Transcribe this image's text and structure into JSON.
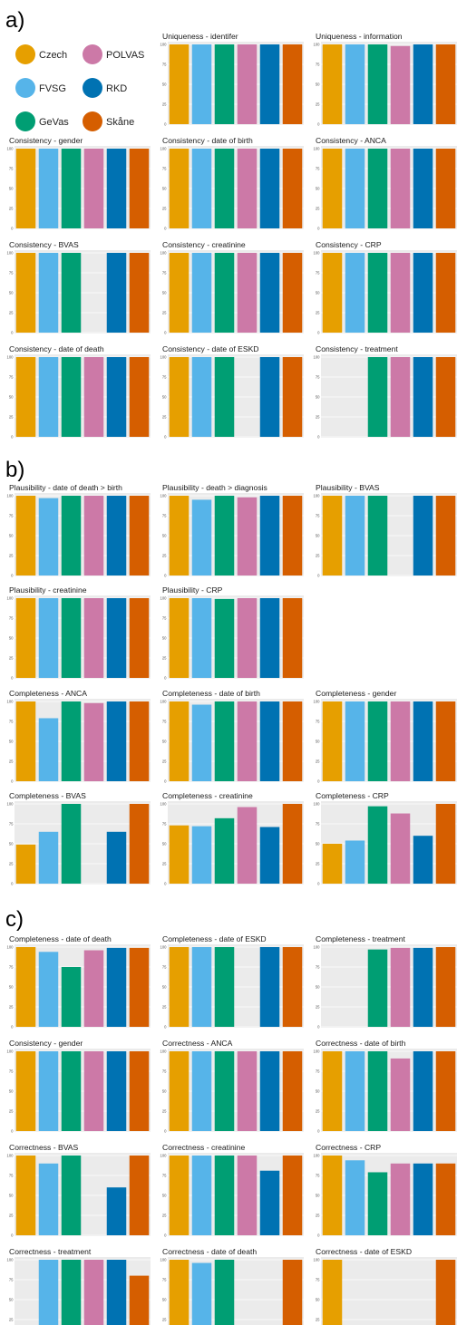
{
  "sections": [
    {
      "label": "a)"
    },
    {
      "label": "b)"
    },
    {
      "label": "c)"
    }
  ],
  "legend": [
    {
      "name": "Czech",
      "color": "#E69F00"
    },
    {
      "name": "POLVAS",
      "color": "#CC79A7"
    },
    {
      "name": "FVSG",
      "color": "#56B4E9"
    },
    {
      "name": "RKD",
      "color": "#0072B2"
    },
    {
      "name": "GeVas",
      "color": "#009E73"
    },
    {
      "name": "Skåne",
      "color": "#D55E00"
    }
  ],
  "chart_data": [
    {
      "type": "bar",
      "title": "Uniqueness - identifer",
      "categories": [
        "Czech",
        "FVSG",
        "GeVas",
        "POLVAS",
        "RKD",
        "Skåne"
      ],
      "values": [
        100,
        100,
        100,
        100,
        100,
        100
      ],
      "ylim": [
        0,
        100
      ],
      "yticks": [
        "100",
        "75",
        "50",
        "25",
        "0"
      ]
    },
    {
      "type": "bar",
      "title": "Uniqueness - information",
      "categories": [
        "Czech",
        "FVSG",
        "GeVas",
        "POLVAS",
        "RKD",
        "Skåne"
      ],
      "values": [
        100,
        100,
        100,
        98,
        100,
        100
      ],
      "ylim": [
        0,
        100
      ],
      "yticks": [
        "100",
        "75",
        "50",
        "25",
        "0"
      ]
    },
    {
      "type": "bar",
      "title": "Consistency - gender",
      "categories": [
        "Czech",
        "FVSG",
        "GeVas",
        "POLVAS",
        "RKD",
        "Skåne"
      ],
      "values": [
        100,
        100,
        100,
        100,
        100,
        100
      ],
      "ylim": [
        0,
        100
      ],
      "yticks": [
        "100",
        "75",
        "50",
        "25",
        "0"
      ]
    },
    {
      "type": "bar",
      "title": "Consistency - date of birth",
      "categories": [
        "Czech",
        "FVSG",
        "GeVas",
        "POLVAS",
        "RKD",
        "Skåne"
      ],
      "values": [
        100,
        100,
        100,
        100,
        100,
        100
      ],
      "ylim": [
        0,
        100
      ],
      "yticks": [
        "100",
        "75",
        "50",
        "25",
        "0"
      ]
    },
    {
      "type": "bar",
      "title": "Consistency - ANCA",
      "categories": [
        "Czech",
        "FVSG",
        "GeVas",
        "POLVAS",
        "RKD",
        "Skåne"
      ],
      "values": [
        100,
        100,
        100,
        100,
        100,
        100
      ],
      "ylim": [
        0,
        100
      ],
      "yticks": [
        "100",
        "75",
        "50",
        "25",
        "0"
      ]
    },
    {
      "type": "bar",
      "title": "Consistency - BVAS",
      "categories": [
        "Czech",
        "FVSG",
        "GeVas",
        "POLVAS",
        "RKD",
        "Skåne"
      ],
      "values": [
        100,
        100,
        100,
        null,
        100,
        100
      ],
      "ylim": [
        0,
        100
      ],
      "yticks": [
        "100",
        "75",
        "50",
        "25",
        "0"
      ]
    },
    {
      "type": "bar",
      "title": "Consistency - creatinine",
      "categories": [
        "Czech",
        "FVSG",
        "GeVas",
        "POLVAS",
        "RKD",
        "Skåne"
      ],
      "values": [
        100,
        100,
        100,
        100,
        100,
        100
      ],
      "ylim": [
        0,
        100
      ],
      "yticks": [
        "100",
        "75",
        "50",
        "25",
        "0"
      ]
    },
    {
      "type": "bar",
      "title": "Consistency - CRP",
      "categories": [
        "Czech",
        "FVSG",
        "GeVas",
        "POLVAS",
        "RKD",
        "Skåne"
      ],
      "values": [
        100,
        100,
        100,
        100,
        100,
        100
      ],
      "ylim": [
        0,
        100
      ],
      "yticks": [
        "100",
        "75",
        "50",
        "25",
        "0"
      ]
    },
    {
      "type": "bar",
      "title": "Consistency - date of death",
      "categories": [
        "Czech",
        "FVSG",
        "GeVas",
        "POLVAS",
        "RKD",
        "Skåne"
      ],
      "values": [
        100,
        100,
        100,
        100,
        100,
        100
      ],
      "ylim": [
        0,
        100
      ],
      "yticks": [
        "100",
        "75",
        "50",
        "25",
        "0"
      ]
    },
    {
      "type": "bar",
      "title": "Consistency - date of ESKD",
      "categories": [
        "Czech",
        "FVSG",
        "GeVas",
        "POLVAS",
        "RKD",
        "Skåne"
      ],
      "values": [
        100,
        100,
        100,
        null,
        100,
        100
      ],
      "ylim": [
        0,
        100
      ],
      "yticks": [
        "100",
        "75",
        "50",
        "25",
        "0"
      ]
    },
    {
      "type": "bar",
      "title": "Consistency - treatment",
      "categories": [
        "Czech",
        "FVSG",
        "GeVas",
        "POLVAS",
        "RKD",
        "Skåne"
      ],
      "values": [
        null,
        null,
        100,
        100,
        100,
        100
      ],
      "ylim": [
        0,
        100
      ],
      "yticks": [
        "100",
        "75",
        "50",
        "25",
        "0"
      ]
    },
    {
      "type": "bar",
      "title": "Plausibility - date of death > birth",
      "categories": [
        "Czech",
        "FVSG",
        "GeVas",
        "POLVAS",
        "RKD",
        "Skåne"
      ],
      "values": [
        100,
        97,
        100,
        100,
        100,
        100
      ],
      "ylim": [
        0,
        100
      ],
      "yticks": [
        "100",
        "75",
        "50",
        "25",
        "0"
      ]
    },
    {
      "type": "bar",
      "title": "Plausibility - death > diagnosis",
      "categories": [
        "Czech",
        "FVSG",
        "GeVas",
        "POLVAS",
        "RKD",
        "Skåne"
      ],
      "values": [
        100,
        95,
        100,
        98,
        100,
        100
      ],
      "ylim": [
        0,
        100
      ],
      "yticks": [
        "100",
        "75",
        "50",
        "25",
        "0"
      ]
    },
    {
      "type": "bar",
      "title": "Plausibility - BVAS",
      "categories": [
        "Czech",
        "FVSG",
        "GeVas",
        "POLVAS",
        "RKD",
        "Skåne"
      ],
      "values": [
        100,
        100,
        100,
        null,
        100,
        100
      ],
      "ylim": [
        0,
        100
      ],
      "yticks": [
        "100",
        "75",
        "50",
        "25",
        "0"
      ]
    },
    {
      "type": "bar",
      "title": "Plausibility - creatinine",
      "categories": [
        "Czech",
        "FVSG",
        "GeVas",
        "POLVAS",
        "RKD",
        "Skåne"
      ],
      "values": [
        100,
        100,
        100,
        100,
        100,
        100
      ],
      "ylim": [
        0,
        100
      ],
      "yticks": [
        "100",
        "75",
        "50",
        "25",
        "0"
      ]
    },
    {
      "type": "bar",
      "title": "Plausibility - CRP",
      "categories": [
        "Czech",
        "FVSG",
        "GeVas",
        "POLVAS",
        "RKD",
        "Skåne"
      ],
      "values": [
        100,
        100,
        99,
        100,
        100,
        100
      ],
      "ylim": [
        0,
        100
      ],
      "yticks": [
        "100",
        "75",
        "50",
        "25",
        "0"
      ]
    },
    {
      "type": "bar",
      "title": "Completeness - ANCA",
      "categories": [
        "Czech",
        "FVSG",
        "GeVas",
        "POLVAS",
        "RKD",
        "Skåne"
      ],
      "values": [
        100,
        79,
        100,
        98,
        100,
        100
      ],
      "ylim": [
        0,
        100
      ],
      "yticks": [
        "100",
        "75",
        "50",
        "25",
        "0"
      ]
    },
    {
      "type": "bar",
      "title": "Completeness - date of birth",
      "categories": [
        "Czech",
        "FVSG",
        "GeVas",
        "POLVAS",
        "RKD",
        "Skåne"
      ],
      "values": [
        100,
        96,
        100,
        100,
        100,
        100
      ],
      "ylim": [
        0,
        100
      ],
      "yticks": [
        "100",
        "75",
        "50",
        "25",
        "0"
      ]
    },
    {
      "type": "bar",
      "title": "Completeness - gender",
      "categories": [
        "Czech",
        "FVSG",
        "GeVas",
        "POLVAS",
        "RKD",
        "Skåne"
      ],
      "values": [
        100,
        100,
        100,
        100,
        100,
        100
      ],
      "ylim": [
        0,
        100
      ],
      "yticks": [
        "100",
        "75",
        "50",
        "25",
        "0"
      ]
    },
    {
      "type": "bar",
      "title": "Completeness - BVAS",
      "categories": [
        "Czech",
        "FVSG",
        "GeVas",
        "POLVAS",
        "RKD",
        "Skåne"
      ],
      "values": [
        49,
        65,
        100,
        null,
        65,
        100
      ],
      "ylim": [
        0,
        100
      ],
      "yticks": [
        "100",
        "75",
        "50",
        "25",
        "0"
      ]
    },
    {
      "type": "bar",
      "title": "Completeness - creatinine",
      "categories": [
        "Czech",
        "FVSG",
        "GeVas",
        "POLVAS",
        "RKD",
        "Skåne"
      ],
      "values": [
        73,
        72,
        82,
        96,
        71,
        100
      ],
      "ylim": [
        0,
        100
      ],
      "yticks": [
        "100",
        "75",
        "50",
        "25",
        "0"
      ]
    },
    {
      "type": "bar",
      "title": "Completeness - CRP",
      "categories": [
        "Czech",
        "FVSG",
        "GeVas",
        "POLVAS",
        "RKD",
        "Skåne"
      ],
      "values": [
        50,
        54,
        97,
        88,
        60,
        100
      ],
      "ylim": [
        0,
        100
      ],
      "yticks": [
        "100",
        "75",
        "50",
        "25",
        "0"
      ]
    },
    {
      "type": "bar",
      "title": "Completeness - date of death",
      "categories": [
        "Czech",
        "FVSG",
        "GeVas",
        "POLVAS",
        "RKD",
        "Skåne"
      ],
      "values": [
        100,
        94,
        75,
        96,
        99,
        99
      ],
      "ylim": [
        0,
        100
      ],
      "yticks": [
        "100",
        "75",
        "50",
        "25",
        "0"
      ]
    },
    {
      "type": "bar",
      "title": "Completeness - date of ESKD",
      "categories": [
        "Czech",
        "FVSG",
        "GeVas",
        "POLVAS",
        "RKD",
        "Skåne"
      ],
      "values": [
        100,
        100,
        100,
        null,
        100,
        100
      ],
      "ylim": [
        0,
        100
      ],
      "yticks": [
        "100",
        "75",
        "50",
        "25",
        "0"
      ]
    },
    {
      "type": "bar",
      "title": "Completeness - treatment",
      "categories": [
        "Czech",
        "FVSG",
        "GeVas",
        "POLVAS",
        "RKD",
        "Skåne"
      ],
      "values": [
        null,
        null,
        97,
        99,
        99,
        100
      ],
      "ylim": [
        0,
        100
      ],
      "yticks": [
        "100",
        "75",
        "50",
        "25",
        "0"
      ]
    },
    {
      "type": "bar",
      "title": "Consistency - gender",
      "categories": [
        "Czech",
        "FVSG",
        "GeVas",
        "POLVAS",
        "RKD",
        "Skåne"
      ],
      "values": [
        100,
        100,
        100,
        100,
        100,
        100
      ],
      "ylim": [
        0,
        100
      ],
      "yticks": [
        "100",
        "75",
        "50",
        "25",
        "0"
      ]
    },
    {
      "type": "bar",
      "title": "Correctness - ANCA",
      "categories": [
        "Czech",
        "FVSG",
        "GeVas",
        "POLVAS",
        "RKD",
        "Skåne"
      ],
      "values": [
        100,
        100,
        100,
        100,
        100,
        100
      ],
      "ylim": [
        0,
        100
      ],
      "yticks": [
        "100",
        "75",
        "50",
        "25",
        "0"
      ]
    },
    {
      "type": "bar",
      "title": "Correctness - date of birth",
      "categories": [
        "Czech",
        "FVSG",
        "GeVas",
        "POLVAS",
        "RKD",
        "Skåne"
      ],
      "values": [
        100,
        100,
        100,
        91,
        100,
        100
      ],
      "ylim": [
        0,
        100
      ],
      "yticks": [
        "100",
        "75",
        "50",
        "25",
        "0"
      ]
    },
    {
      "type": "bar",
      "title": "Correctness - BVAS",
      "categories": [
        "Czech",
        "FVSG",
        "GeVas",
        "POLVAS",
        "RKD",
        "Skåne"
      ],
      "values": [
        100,
        90,
        100,
        null,
        60,
        100
      ],
      "ylim": [
        0,
        100
      ],
      "yticks": [
        "100",
        "75",
        "50",
        "25",
        "0"
      ]
    },
    {
      "type": "bar",
      "title": "Correctness - creatinine",
      "categories": [
        "Czech",
        "FVSG",
        "GeVas",
        "POLVAS",
        "RKD",
        "Skåne"
      ],
      "values": [
        100,
        100,
        100,
        100,
        81,
        100
      ],
      "ylim": [
        0,
        100
      ],
      "yticks": [
        "100",
        "75",
        "50",
        "25",
        "0"
      ]
    },
    {
      "type": "bar",
      "title": "Correctness - CRP",
      "categories": [
        "Czech",
        "FVSG",
        "GeVas",
        "POLVAS",
        "RKD",
        "Skåne"
      ],
      "values": [
        100,
        94,
        79,
        90,
        90,
        90
      ],
      "ylim": [
        0,
        100
      ],
      "yticks": [
        "100",
        "75",
        "50",
        "25",
        "0"
      ]
    },
    {
      "type": "bar",
      "title": "Correctness - treatment",
      "categories": [
        "Czech",
        "FVSG",
        "GeVas",
        "POLVAS",
        "RKD",
        "Skåne"
      ],
      "values": [
        null,
        100,
        100,
        100,
        100,
        80
      ],
      "ylim": [
        0,
        100
      ],
      "yticks": [
        "100",
        "75",
        "50",
        "25",
        "0"
      ]
    },
    {
      "type": "bar",
      "title": "Correctness - date of death",
      "categories": [
        "Czech",
        "FVSG",
        "GeVas",
        "POLVAS",
        "RKD",
        "Skåne"
      ],
      "values": [
        100,
        96,
        100,
        null,
        null,
        100
      ],
      "ylim": [
        0,
        100
      ],
      "yticks": [
        "100",
        "75",
        "50",
        "25",
        "0"
      ]
    },
    {
      "type": "bar",
      "title": "Correctness - date of ESKD",
      "categories": [
        "Czech",
        "FVSG",
        "GeVas",
        "POLVAS",
        "RKD",
        "Skåne"
      ],
      "values": [
        100,
        null,
        null,
        null,
        null,
        100
      ],
      "ylim": [
        0,
        100
      ],
      "yticks": [
        "100",
        "75",
        "50",
        "25",
        "0"
      ]
    }
  ]
}
